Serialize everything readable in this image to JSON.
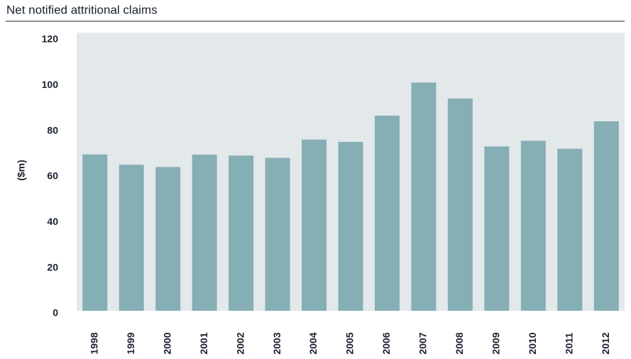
{
  "chart_data": {
    "type": "bar",
    "title": "Net notified attritional claims",
    "y_label": "($m)",
    "categories": [
      "1998",
      "1999",
      "2000",
      "2001",
      "2002",
      "2003",
      "2004",
      "2005",
      "2006",
      "2007",
      "2008",
      "2009",
      "2010",
      "2011",
      "2012"
    ],
    "values": [
      68.5,
      64,
      63,
      68.4,
      68,
      67,
      75,
      74,
      85.5,
      100,
      93,
      72,
      74.5,
      71,
      83
    ],
    "color": "#86afb5",
    "ylim": [
      0,
      120
    ],
    "yticks": [
      0,
      20,
      40,
      60,
      80,
      100,
      120
    ]
  }
}
